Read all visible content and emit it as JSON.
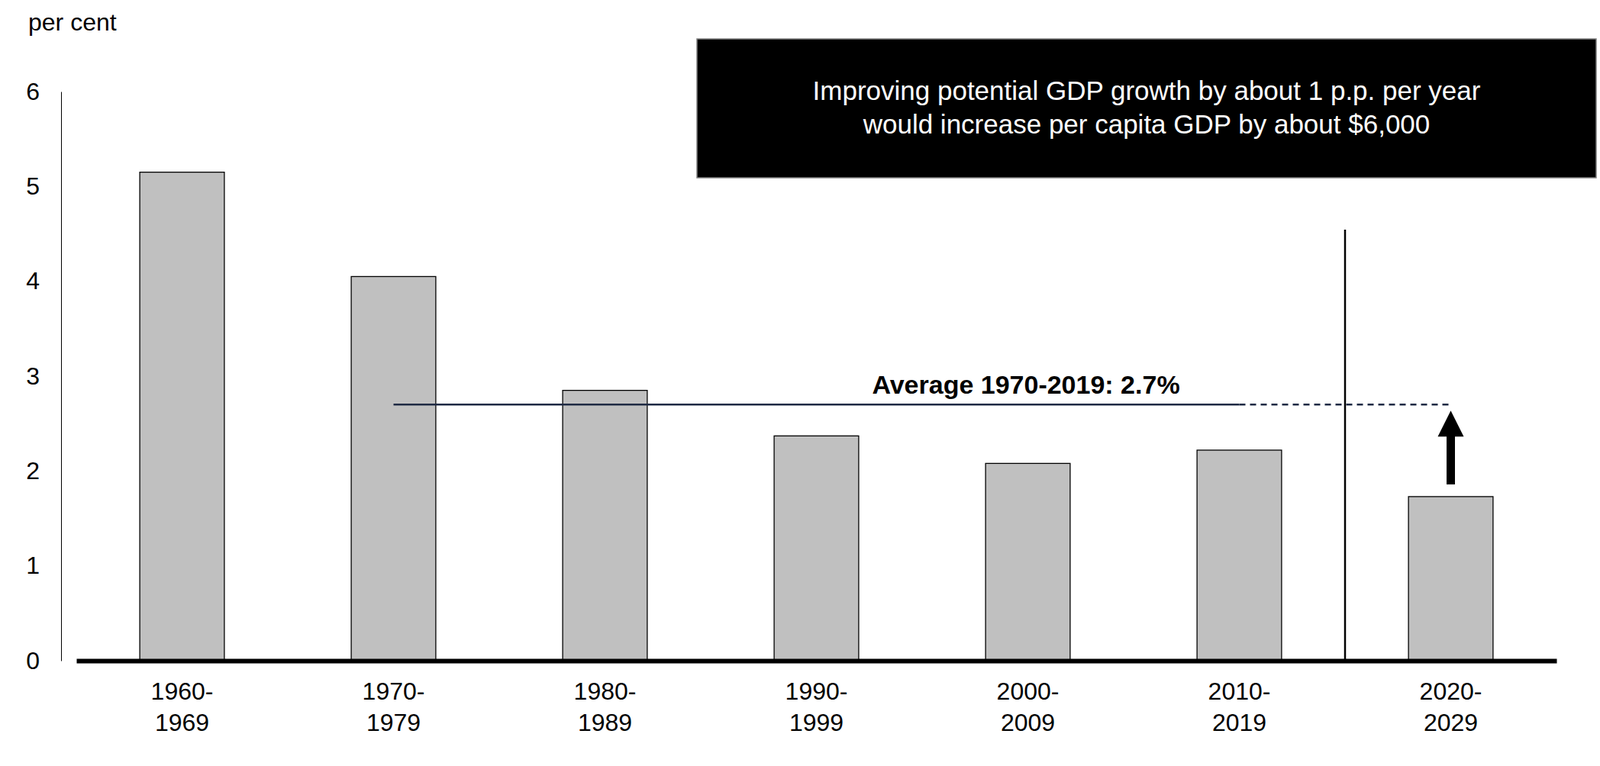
{
  "chart_data": {
    "type": "bar",
    "y_label": "per cent",
    "categories": [
      "1960-1969",
      "1970-1979",
      "1980-1989",
      "1990-1999",
      "2000-2009",
      "2010-2019",
      "2020-2029"
    ],
    "values": [
      5.15,
      4.05,
      2.85,
      2.37,
      2.08,
      2.22,
      1.73
    ],
    "color": "#c0c0c0",
    "ylim": [
      0,
      6
    ],
    "yticks": [
      0,
      1,
      2,
      3,
      4,
      5,
      6
    ],
    "grid": false,
    "average": {
      "value": 2.7,
      "label": "Average 1970-2019: 2.7%"
    },
    "annotation": [
      "Improving potential GDP growth by about 1 p.p. per year",
      "would increase per capita GDP by about $6,000"
    ]
  }
}
